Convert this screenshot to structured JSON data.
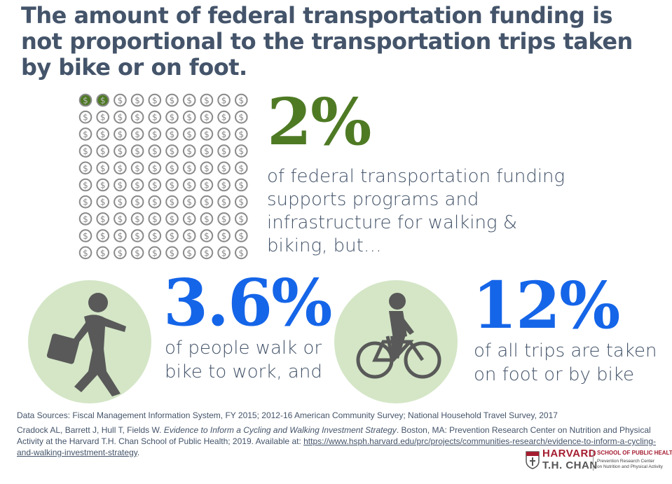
{
  "title": "The amount of federal transportation funding is not proportional to the transportation trips taken by bike or on foot.",
  "funding": {
    "percent": "2%",
    "text": "of federal transportation funding supports programs and infrastructure for walking & biking, but…",
    "pictograph": {
      "total": 100,
      "highlighted": 2,
      "icon": "dollar-coin-icon"
    }
  },
  "walk_bike_work": {
    "percent": "3.6%",
    "text_line1": "of people walk or",
    "text_line2": "bike to work, and",
    "icon": "walking-commuter-icon"
  },
  "trips": {
    "percent": "12%",
    "text_line1": "of all trips are taken",
    "text_line2": "on foot or by bike",
    "icon": "cyclist-icon"
  },
  "sources": {
    "data_sources": "Data Sources: Fiscal Management Information System, FY 2015; 2012-16 American Community Survey; National Household Travel Survey, 2017",
    "citation_pre": "Cradock AL, Barrett J, Hull T, Fields W. ",
    "citation_title": "Evidence to Inform a Cycling and Walking Investment Strategy",
    "citation_post": ". Boston, MA: Prevention Research Center on Nutrition and Physical Activity at the Harvard T.H. Chan School of Public Health; 2019. Available at: ",
    "url": "https://www.hsph.harvard.edu/prc/projects/communities-research/evidence-to-inform-a-cycling-and-walking-investment-strategy",
    "end": "."
  },
  "logo": {
    "line1": "HARVARD",
    "line2": "T.H. CHAN",
    "school": "SCHOOL OF PUBLIC HEALTH",
    "center1": "Prevention Research Center",
    "center2": "on Nutrition and Physical Activity"
  },
  "colors": {
    "title": "#44546a",
    "green": "#4e7a24",
    "blue": "#1565e8",
    "circle": "#d4e6c6",
    "coin": "#8a8a8a",
    "crimson": "#a51c30"
  }
}
